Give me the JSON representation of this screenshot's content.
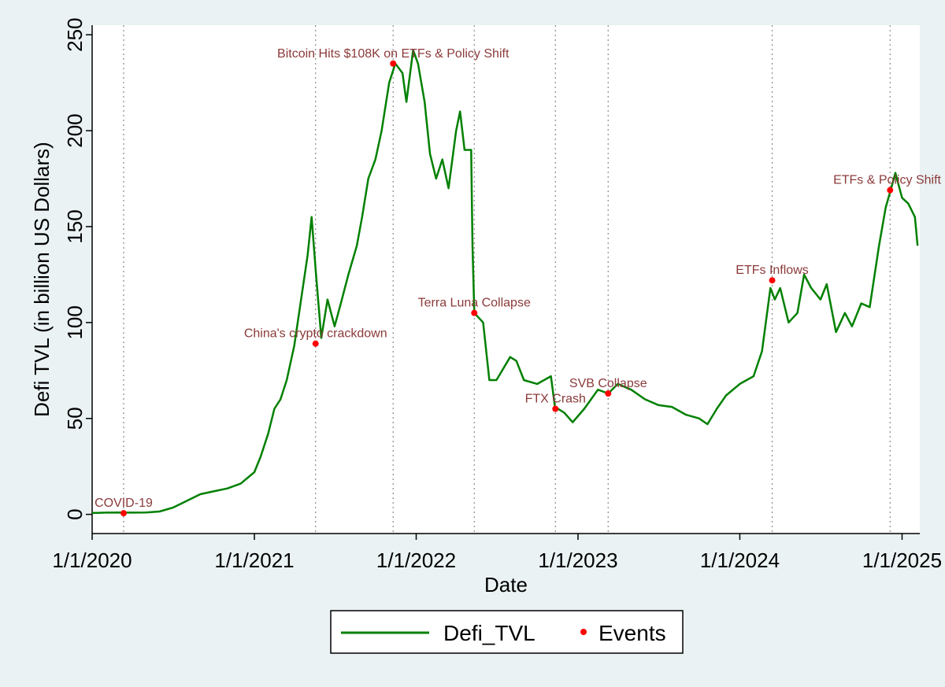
{
  "chart_data": {
    "type": "line",
    "xlabel": "Date",
    "ylabel": "Defi TVL (in billion US Dollars)",
    "xlim": [
      "2020-01-01",
      "2025-02-10"
    ],
    "ylim": [
      -10,
      255
    ],
    "x_ticks": [
      "1/1/2020",
      "1/1/2021",
      "1/1/2022",
      "1/1/2023",
      "1/1/2024",
      "1/1/2025"
    ],
    "y_ticks": [
      0,
      50,
      100,
      150,
      200,
      250
    ],
    "grid": false,
    "legend_position": "bottom",
    "legend": [
      {
        "label": "Defi_TVL",
        "marker": "line",
        "color": "#008000"
      },
      {
        "label": "Events",
        "marker": "dot",
        "color": "#ff0000"
      }
    ],
    "series": [
      {
        "name": "Defi_TVL",
        "color": "#008000",
        "points": [
          [
            "2020-01-01",
            0.7
          ],
          [
            "2020-02-01",
            0.9
          ],
          [
            "2020-03-01",
            1.0
          ],
          [
            "2020-04-01",
            0.9
          ],
          [
            "2020-05-01",
            1.0
          ],
          [
            "2020-06-01",
            1.5
          ],
          [
            "2020-07-01",
            3.5
          ],
          [
            "2020-08-01",
            7.0
          ],
          [
            "2020-09-01",
            10.5
          ],
          [
            "2020-10-01",
            12.0
          ],
          [
            "2020-11-01",
            13.5
          ],
          [
            "2020-12-01",
            16.0
          ],
          [
            "2021-01-01",
            22
          ],
          [
            "2021-01-15",
            30
          ],
          [
            "2021-02-01",
            42
          ],
          [
            "2021-02-15",
            55
          ],
          [
            "2021-03-01",
            60
          ],
          [
            "2021-03-15",
            70
          ],
          [
            "2021-04-01",
            88
          ],
          [
            "2021-04-15",
            110
          ],
          [
            "2021-05-01",
            135
          ],
          [
            "2021-05-10",
            155
          ],
          [
            "2021-05-20",
            125
          ],
          [
            "2021-06-01",
            92
          ],
          [
            "2021-06-15",
            112
          ],
          [
            "2021-07-01",
            98
          ],
          [
            "2021-07-15",
            110
          ],
          [
            "2021-08-01",
            125
          ],
          [
            "2021-08-20",
            140
          ],
          [
            "2021-09-01",
            155
          ],
          [
            "2021-09-15",
            175
          ],
          [
            "2021-10-01",
            185
          ],
          [
            "2021-10-15",
            200
          ],
          [
            "2021-11-01",
            225
          ],
          [
            "2021-11-15",
            235
          ],
          [
            "2021-12-01",
            230
          ],
          [
            "2021-12-10",
            215
          ],
          [
            "2021-12-25",
            242
          ],
          [
            "2022-01-05",
            235
          ],
          [
            "2022-01-20",
            215
          ],
          [
            "2022-02-01",
            188
          ],
          [
            "2022-02-15",
            175
          ],
          [
            "2022-03-01",
            185
          ],
          [
            "2022-03-15",
            170
          ],
          [
            "2022-04-01",
            200
          ],
          [
            "2022-04-10",
            210
          ],
          [
            "2022-04-20",
            190
          ],
          [
            "2022-05-01",
            190
          ],
          [
            "2022-05-05",
            190
          ],
          [
            "2022-05-08",
            140
          ],
          [
            "2022-05-12",
            105
          ],
          [
            "2022-06-01",
            100
          ],
          [
            "2022-06-15",
            70
          ],
          [
            "2022-07-01",
            70
          ],
          [
            "2022-08-01",
            82
          ],
          [
            "2022-08-15",
            80
          ],
          [
            "2022-09-01",
            70
          ],
          [
            "2022-10-01",
            68
          ],
          [
            "2022-11-01",
            72
          ],
          [
            "2022-11-10",
            56
          ],
          [
            "2022-12-01",
            53
          ],
          [
            "2022-12-20",
            48
          ],
          [
            "2023-01-15",
            55
          ],
          [
            "2023-02-15",
            65
          ],
          [
            "2023-03-10",
            63
          ],
          [
            "2023-04-01",
            68
          ],
          [
            "2023-05-01",
            65
          ],
          [
            "2023-06-01",
            60
          ],
          [
            "2023-07-01",
            57
          ],
          [
            "2023-08-01",
            56
          ],
          [
            "2023-09-01",
            52
          ],
          [
            "2023-10-01",
            50
          ],
          [
            "2023-10-20",
            47
          ],
          [
            "2023-11-10",
            55
          ],
          [
            "2023-12-01",
            62
          ],
          [
            "2024-01-01",
            68
          ],
          [
            "2024-02-01",
            72
          ],
          [
            "2024-02-20",
            85
          ],
          [
            "2024-03-10",
            118
          ],
          [
            "2024-03-20",
            112
          ],
          [
            "2024-04-01",
            118
          ],
          [
            "2024-04-20",
            100
          ],
          [
            "2024-05-10",
            105
          ],
          [
            "2024-05-25",
            125
          ],
          [
            "2024-06-10",
            118
          ],
          [
            "2024-07-01",
            112
          ],
          [
            "2024-07-15",
            120
          ],
          [
            "2024-08-05",
            95
          ],
          [
            "2024-08-25",
            105
          ],
          [
            "2024-09-10",
            98
          ],
          [
            "2024-10-01",
            110
          ],
          [
            "2024-10-20",
            108
          ],
          [
            "2024-11-10",
            140
          ],
          [
            "2024-11-25",
            160
          ],
          [
            "2024-12-05",
            168
          ],
          [
            "2024-12-17",
            178
          ],
          [
            "2025-01-01",
            165
          ],
          [
            "2025-01-15",
            162
          ],
          [
            "2025-01-30",
            155
          ],
          [
            "2025-02-05",
            140
          ]
        ]
      }
    ],
    "events": [
      {
        "date": "2020-03-12",
        "value": 0.6,
        "label": "COVID-19"
      },
      {
        "date": "2021-05-19",
        "value": 89,
        "label": "China's crypto crackdown"
      },
      {
        "date": "2021-11-10",
        "value": 235,
        "label": "Bitcoin Hits $108K on ETFs & Policy Shift"
      },
      {
        "date": "2022-05-12",
        "value": 105,
        "label": "Terra Luna Collapse"
      },
      {
        "date": "2022-11-11",
        "value": 55,
        "label": "FTX Crash"
      },
      {
        "date": "2023-03-10",
        "value": 63,
        "label": "SVB Collapse"
      },
      {
        "date": "2024-03-14",
        "value": 122,
        "label": "ETFs Inflows"
      },
      {
        "date": "2024-12-05",
        "value": 169,
        "label": "ETFs & Policy Shift"
      }
    ]
  }
}
